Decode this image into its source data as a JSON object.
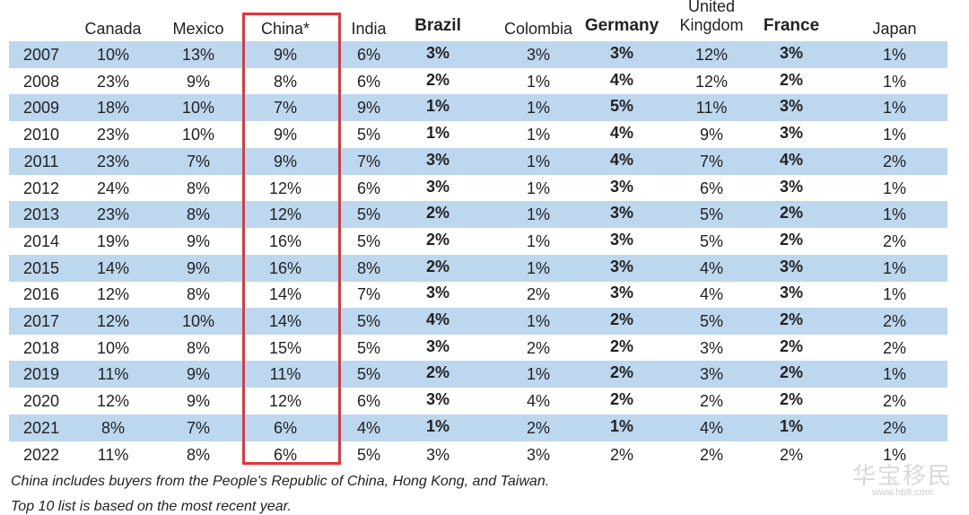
{
  "chart_data": {
    "type": "table",
    "columns": [
      {
        "name": "Canada",
        "bold": false
      },
      {
        "name": "Mexico",
        "bold": false
      },
      {
        "name": "China*",
        "bold": false
      },
      {
        "name": "India",
        "bold": false
      },
      {
        "name": "Brazil",
        "bold": true
      },
      {
        "name": "Colombia",
        "bold": false
      },
      {
        "name": "Germany",
        "bold": true
      },
      {
        "name": "United Kingdom",
        "bold": false
      },
      {
        "name": "France",
        "bold": true
      },
      {
        "name": "Japan",
        "bold": false
      }
    ],
    "rows": [
      {
        "year": "2007",
        "values": [
          "10%",
          "13%",
          "9%",
          "6%",
          "3%",
          "3%",
          "3%",
          "12%",
          "3%",
          "1%"
        ]
      },
      {
        "year": "2008",
        "values": [
          "23%",
          "9%",
          "8%",
          "6%",
          "2%",
          "1%",
          "4%",
          "12%",
          "2%",
          "1%"
        ]
      },
      {
        "year": "2009",
        "values": [
          "18%",
          "10%",
          "7%",
          "9%",
          "1%",
          "1%",
          "5%",
          "11%",
          "3%",
          "1%"
        ]
      },
      {
        "year": "2010",
        "values": [
          "23%",
          "10%",
          "9%",
          "5%",
          "1%",
          "1%",
          "4%",
          "9%",
          "3%",
          "1%"
        ]
      },
      {
        "year": "2011",
        "values": [
          "23%",
          "7%",
          "9%",
          "7%",
          "3%",
          "1%",
          "4%",
          "7%",
          "4%",
          "2%"
        ]
      },
      {
        "year": "2012",
        "values": [
          "24%",
          "8%",
          "12%",
          "6%",
          "3%",
          "1%",
          "3%",
          "6%",
          "3%",
          "1%"
        ]
      },
      {
        "year": "2013",
        "values": [
          "23%",
          "8%",
          "12%",
          "5%",
          "2%",
          "1%",
          "3%",
          "5%",
          "2%",
          "1%"
        ]
      },
      {
        "year": "2014",
        "values": [
          "19%",
          "9%",
          "16%",
          "5%",
          "2%",
          "1%",
          "3%",
          "5%",
          "2%",
          "2%"
        ]
      },
      {
        "year": "2015",
        "values": [
          "14%",
          "9%",
          "16%",
          "8%",
          "2%",
          "1%",
          "3%",
          "4%",
          "3%",
          "1%"
        ]
      },
      {
        "year": "2016",
        "values": [
          "12%",
          "8%",
          "14%",
          "7%",
          "3%",
          "2%",
          "3%",
          "4%",
          "3%",
          "1%"
        ]
      },
      {
        "year": "2017",
        "values": [
          "12%",
          "10%",
          "14%",
          "5%",
          "4%",
          "1%",
          "2%",
          "5%",
          "2%",
          "2%"
        ]
      },
      {
        "year": "2018",
        "values": [
          "10%",
          "8%",
          "15%",
          "5%",
          "3%",
          "2%",
          "2%",
          "3%",
          "2%",
          "2%"
        ]
      },
      {
        "year": "2019",
        "values": [
          "11%",
          "9%",
          "11%",
          "5%",
          "2%",
          "1%",
          "2%",
          "3%",
          "2%",
          "1%"
        ]
      },
      {
        "year": "2020",
        "values": [
          "12%",
          "9%",
          "12%",
          "6%",
          "3%",
          "4%",
          "2%",
          "2%",
          "2%",
          "2%"
        ]
      },
      {
        "year": "2021",
        "values": [
          "8%",
          "7%",
          "6%",
          "4%",
          "1%",
          "2%",
          "1%",
          "4%",
          "1%",
          "2%"
        ]
      },
      {
        "year": "2022",
        "values": [
          "11%",
          "8%",
          "6%",
          "5%",
          "3%",
          "3%",
          "2%",
          "2%",
          "2%",
          "1%"
        ]
      }
    ],
    "bold_rows_until_index": 14,
    "highlighted_column": "China*",
    "row_shade_color": "#bdd7ee",
    "highlight_color": "#e8333b"
  },
  "footnotes": {
    "line1": "China includes buyers from the People's Republic of China, Hong Kong, and Taiwan.",
    "line2": "Top 10 list is based on the most recent year."
  },
  "watermark": {
    "big": "华宝移民",
    "small": "www.hb8.com"
  }
}
